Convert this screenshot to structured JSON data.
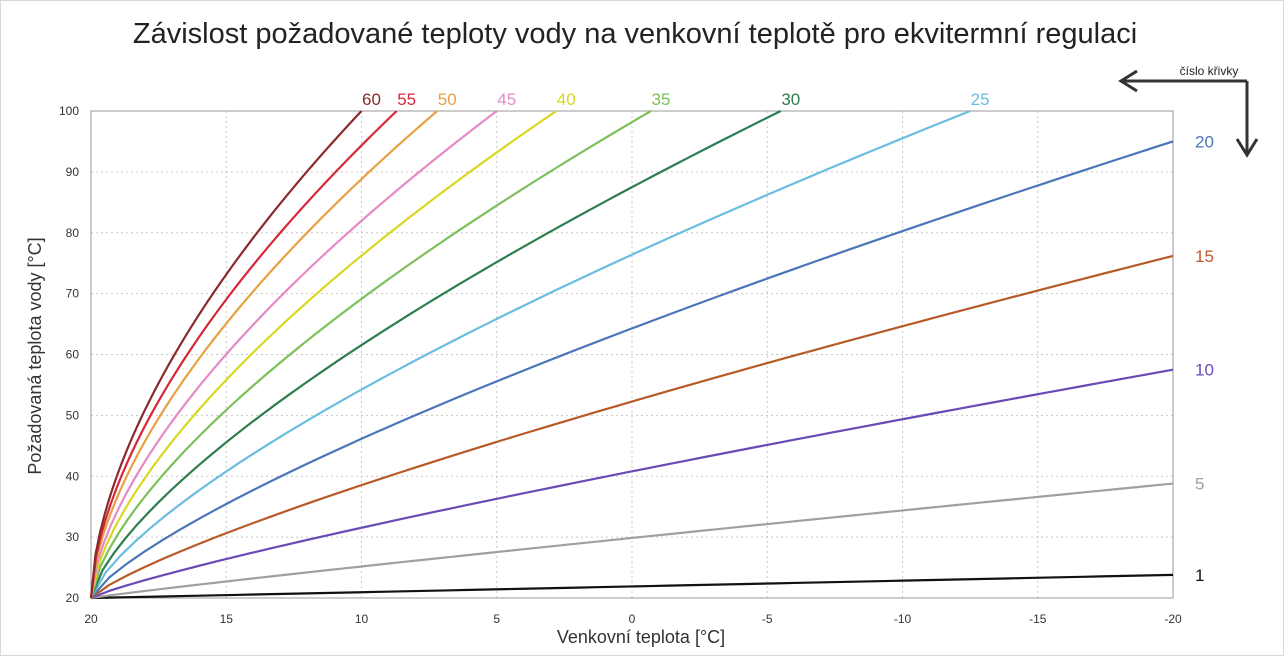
{
  "chart_data": {
    "type": "line",
    "title": "Závislost požadované teploty vody na venkovní teplotě pro ekvitermní regulaci",
    "xlabel": "Venkovní teplota [°C]",
    "ylabel": "Požadovaná teplota vody [°C]",
    "xlim": [
      20,
      -20
    ],
    "ylim": [
      20,
      100
    ],
    "x_ticks": [
      20,
      15,
      10,
      5,
      0,
      -5,
      -10,
      -15,
      -20
    ],
    "x_tick_labels": [
      "20",
      "15",
      "10",
      "5",
      "0",
      "-5",
      "-10",
      "-15",
      "-20"
    ],
    "y_ticks": [
      20,
      30,
      40,
      50,
      60,
      70,
      80,
      90,
      100
    ],
    "y_tick_labels": [
      "20",
      "30",
      "40",
      "50",
      "60",
      "70",
      "80",
      "90",
      "100"
    ],
    "grid": true,
    "legend_caption": "číslo křivky",
    "series": [
      {
        "name": "1",
        "label": "1",
        "color": "#111111",
        "end_x": -20,
        "end_y": 23.8,
        "exponent": 1.0
      },
      {
        "name": "5",
        "label": "5",
        "color": "#a0a0a0",
        "end_x": -20,
        "end_y": 38.8,
        "exponent": 0.93
      },
      {
        "name": "10",
        "label": "10",
        "color": "#6a4ab5",
        "end_x": -20,
        "end_y": 57.5,
        "exponent": 0.85
      },
      {
        "name": "15",
        "label": "15",
        "color": "#b85a28",
        "end_x": -20,
        "end_y": 76.2,
        "exponent": 0.8
      },
      {
        "name": "20",
        "label": "20",
        "color": "#4a76b8",
        "end_x": -20,
        "end_y": 95.0,
        "exponent": 0.76
      },
      {
        "name": "25",
        "label": "25",
        "color": "#6bbde0",
        "end_x": -12.5,
        "end_y": 100,
        "exponent": 0.72
      },
      {
        "name": "30",
        "label": "30",
        "color": "#2e7d4e",
        "end_x": -5.5,
        "end_y": 100,
        "exponent": 0.7
      },
      {
        "name": "35",
        "label": "35",
        "color": "#7cc05a",
        "end_x": -0.7,
        "end_y": 100,
        "exponent": 0.67
      },
      {
        "name": "40",
        "label": "40",
        "color": "#d8d820",
        "end_x": 2.8,
        "end_y": 100,
        "exponent": 0.65
      },
      {
        "name": "45",
        "label": "45",
        "color": "#e58ac7",
        "end_x": 5.0,
        "end_y": 100,
        "exponent": 0.63
      },
      {
        "name": "50",
        "label": "50",
        "color": "#e8a040",
        "end_x": 7.2,
        "end_y": 100,
        "exponent": 0.61
      },
      {
        "name": "55",
        "label": "55",
        "color": "#d6283a",
        "end_x": 8.7,
        "end_y": 100,
        "exponent": 0.6
      },
      {
        "name": "60",
        "label": "60",
        "color": "#8b2a2a",
        "end_x": 10.0,
        "end_y": 100,
        "exponent": 0.59
      }
    ]
  }
}
